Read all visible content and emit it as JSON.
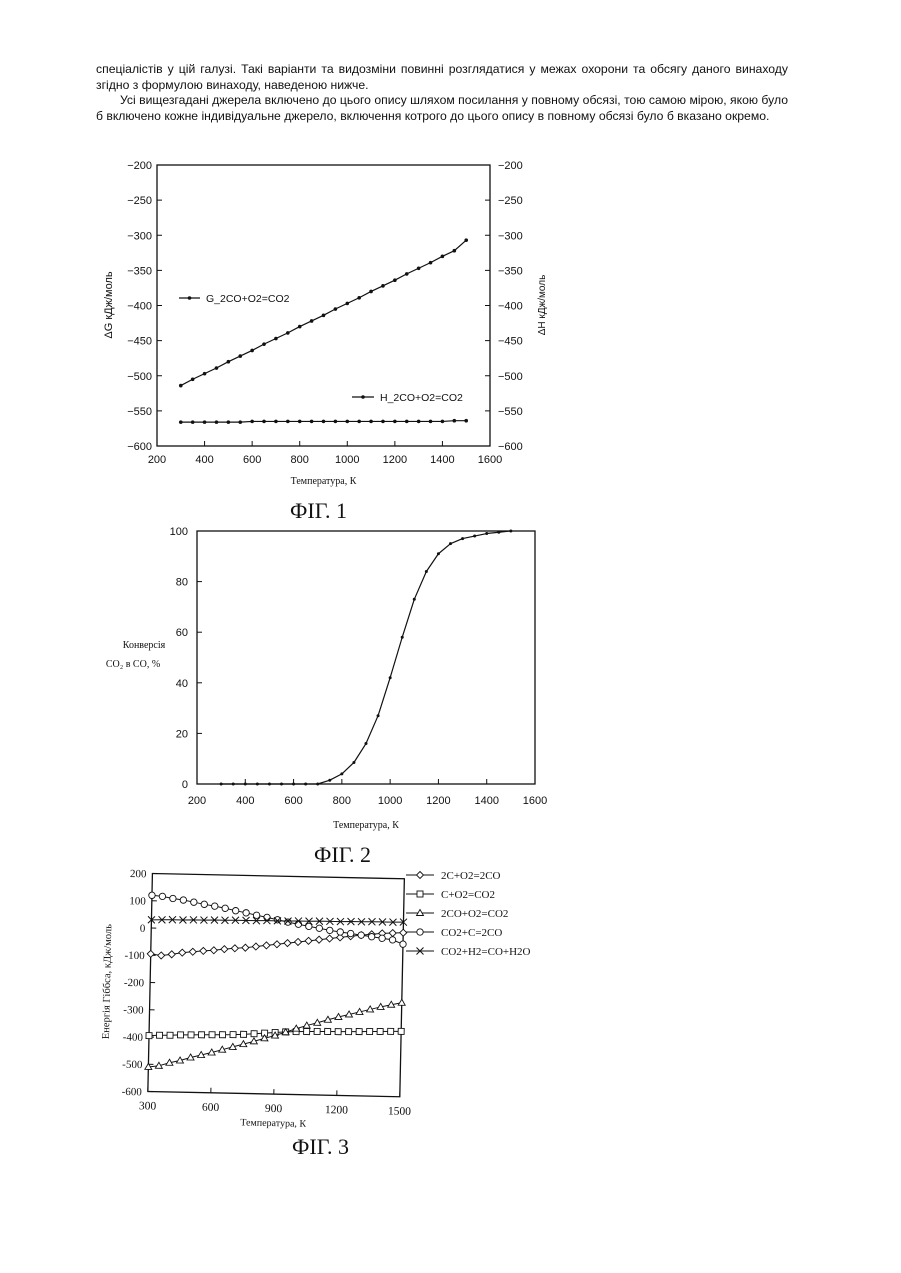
{
  "text": {
    "paragraph1": "спеціалістів у цій галузі. Такі варіанти та видозміни повинні розглядатися у межах охорони та обсягу даного винаходу згідно з формулою винаходу, наведеною нижче.",
    "paragraph2": "Усі вищезгадані джерела включено до цього опису шляхом посилання у повному обсязі, тою самою мірою, якою було б включено кожне індивідуальне джерело, включення котрого до цього опису в повному обсязі було б вказано окремо."
  },
  "figures": {
    "fig1_caption": "ФІГ. 1",
    "fig2_caption": "ФІГ. 2",
    "fig3_caption": "ФІГ. 3"
  },
  "chart_data": [
    {
      "type": "line",
      "title": "",
      "xlabel": "Температура, К",
      "ylabel": "ΔG кДж/моль",
      "ylabel_right": "ΔH кДж/моль",
      "xlim": [
        200,
        1600
      ],
      "ylim": [
        -600,
        -200
      ],
      "xticks": [
        200,
        400,
        600,
        800,
        1000,
        1200,
        1400,
        1600
      ],
      "yticks": [
        -200,
        -250,
        -300,
        -350,
        -400,
        -450,
        -500,
        -550,
        -600
      ],
      "grid": false,
      "x": [
        300,
        350,
        400,
        450,
        500,
        550,
        600,
        650,
        700,
        750,
        800,
        850,
        900,
        950,
        1000,
        1050,
        1100,
        1150,
        1200,
        1250,
        1300,
        1350,
        1400,
        1450,
        1500
      ],
      "series": [
        {
          "name": "G_2CO+O2=CO2",
          "values": [
            -514,
            -505,
            -497,
            -489,
            -480,
            -472,
            -464,
            -455,
            -447,
            -439,
            -430,
            -422,
            -414,
            -405,
            -397,
            -389,
            -380,
            -372,
            -364,
            -355,
            -347,
            -339,
            -330,
            -322,
            -307
          ]
        },
        {
          "name": "H_2CO+O2=CO2",
          "values": [
            -566,
            -566,
            -566,
            -566,
            -566,
            -566,
            -565,
            -565,
            -565,
            -565,
            -565,
            -565,
            -565,
            -565,
            -565,
            -565,
            -565,
            -565,
            -565,
            -565,
            -565,
            -565,
            -565,
            -564,
            -564
          ]
        }
      ]
    },
    {
      "type": "line",
      "title": "",
      "xlabel": "Температура, К",
      "ylabel_line1": "Конверсія",
      "ylabel_line2": "CO₂ в CO, %",
      "xlim": [
        200,
        1600
      ],
      "ylim": [
        0,
        100
      ],
      "xticks": [
        200,
        400,
        600,
        800,
        1000,
        1200,
        1400,
        1600
      ],
      "yticks": [
        0,
        20,
        40,
        60,
        80,
        100
      ],
      "grid": false,
      "x": [
        300,
        350,
        400,
        450,
        500,
        550,
        600,
        650,
        700,
        750,
        800,
        850,
        900,
        950,
        1000,
        1050,
        1100,
        1150,
        1200,
        1250,
        1300,
        1350,
        1400,
        1450,
        1500
      ],
      "values": [
        0,
        0,
        0,
        0,
        0,
        0,
        0,
        0,
        0,
        1.5,
        4,
        8.5,
        16,
        27,
        42,
        58,
        73,
        84,
        91,
        95,
        97,
        98,
        99,
        99.5,
        100
      ]
    },
    {
      "type": "line",
      "title": "",
      "xlabel": "Температура, К",
      "ylabel": "Енергія Гіббса, кДж/моль",
      "xlim": [
        300,
        1500
      ],
      "ylim": [
        -600,
        200
      ],
      "xticks": [
        300,
        600,
        900,
        1200,
        1500
      ],
      "yticks": [
        200,
        100,
        0,
        -100,
        -200,
        -300,
        -400,
        -500,
        -600
      ],
      "grid": false,
      "legend_position": "right",
      "x": [
        300,
        350,
        400,
        450,
        500,
        550,
        600,
        650,
        700,
        750,
        800,
        850,
        900,
        950,
        1000,
        1050,
        1100,
        1150,
        1200,
        1250,
        1300,
        1350,
        1400,
        1450,
        1500
      ],
      "series": [
        {
          "name": "2C+O2=2CO",
          "marker": "diamond",
          "values": [
            -95,
            -100,
            -95,
            -88,
            -84,
            -80,
            -77,
            -72,
            -68,
            -65,
            -60,
            -55,
            -50,
            -45,
            -40,
            -35,
            -30,
            -25,
            -20,
            -15,
            -10,
            -6,
            -2,
            0,
            2
          ]
        },
        {
          "name": "C+O2=CO2",
          "marker": "square",
          "values": [
            -395,
            -393,
            -392,
            -390,
            -389,
            -388,
            -387,
            -386,
            -385,
            -383,
            -380,
            -377,
            -374,
            -371,
            -369,
            -368,
            -367,
            -366,
            -366,
            -365,
            -364,
            -363,
            -362,
            -361,
            -360
          ]
        },
        {
          "name": "2CO+O2=CO2",
          "marker": "triangle",
          "values": [
            -510,
            -505,
            -493,
            -484,
            -472,
            -462,
            -452,
            -441,
            -430,
            -419,
            -408,
            -396,
            -385,
            -372,
            -358,
            -346,
            -335,
            -323,
            -312,
            -302,
            -292,
            -282,
            -272,
            -263,
            -255
          ]
        },
        {
          "name": "CO2+C=2CO",
          "marker": "circle",
          "values": [
            120,
            117,
            110,
            105,
            98,
            91,
            85,
            78,
            70,
            63,
            55,
            48,
            40,
            32,
            25,
            18,
            12,
            5,
            0,
            -5,
            -10,
            -15,
            -20,
            -25,
            -40
          ]
        },
        {
          "name": "CO2+H2=CO+H2O",
          "marker": "x",
          "values": [
            30,
            31,
            32,
            32,
            33,
            33,
            34,
            34,
            35,
            35,
            35,
            36,
            36,
            36,
            37,
            37,
            38,
            38,
            38,
            39,
            39,
            40,
            40,
            40,
            41
          ]
        }
      ]
    }
  ]
}
